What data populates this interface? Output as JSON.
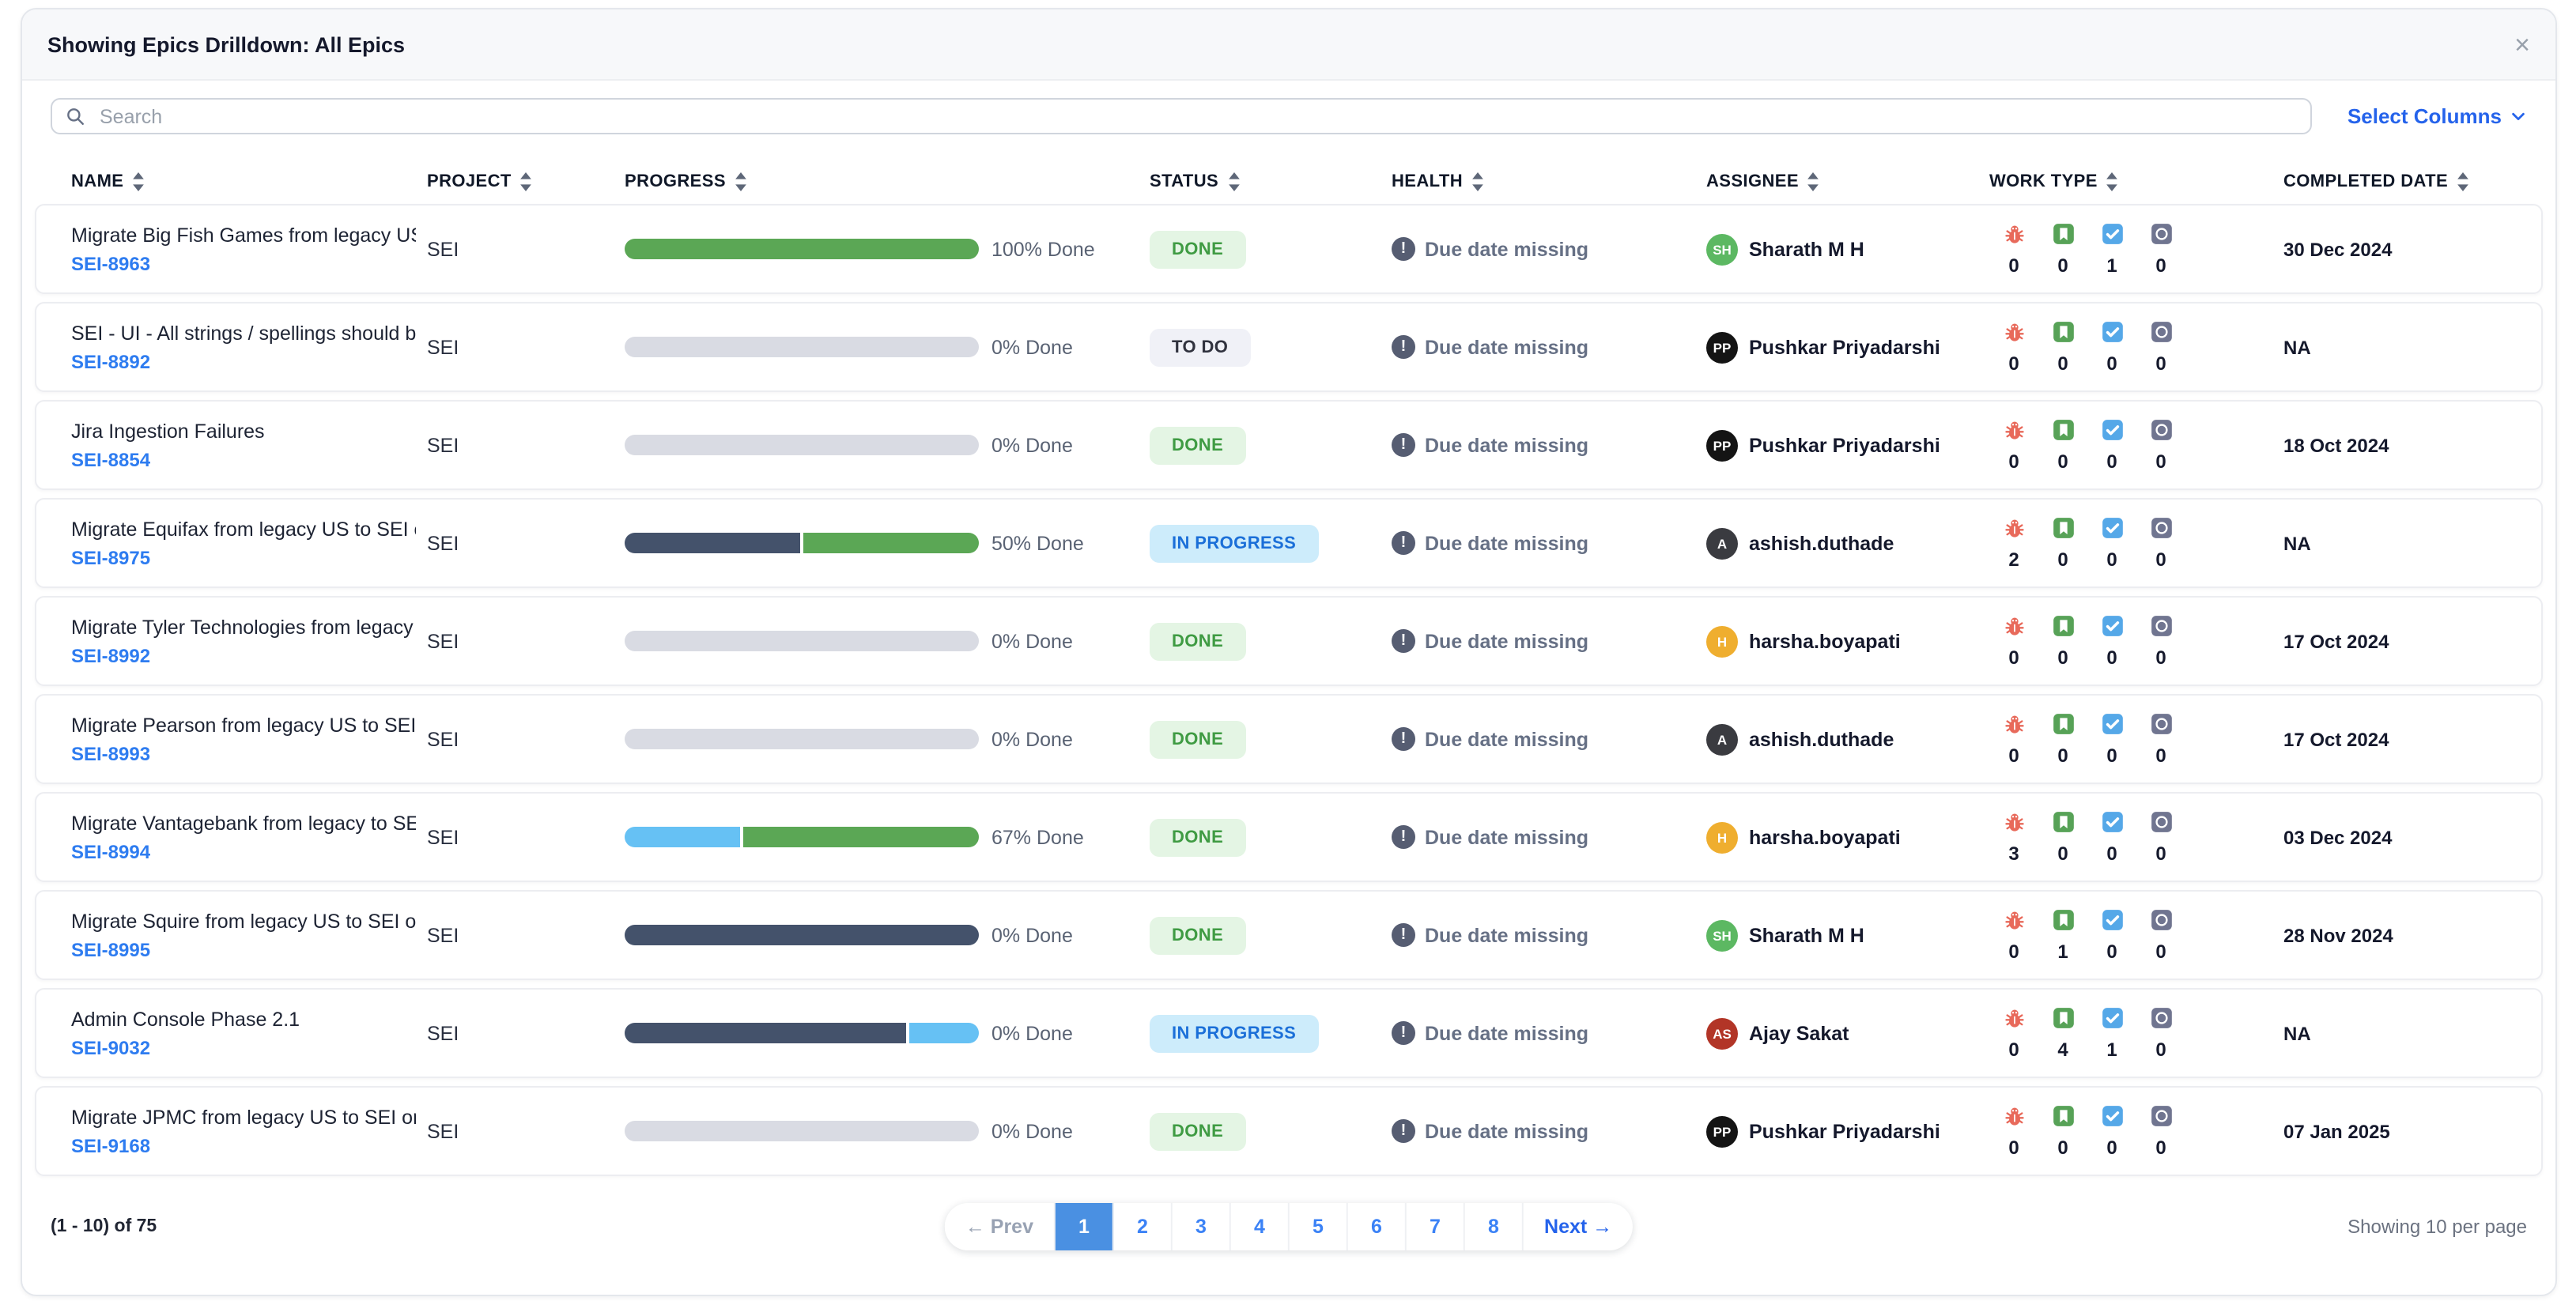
{
  "header": {
    "title": "Showing Epics Drilldown: All Epics"
  },
  "icons": {
    "close_glyph": "×",
    "warning_glyph": "!"
  },
  "toolbar": {
    "search_placeholder": "Search",
    "select_columns_label": "Select Columns"
  },
  "table": {
    "columns": [
      {
        "key": "name",
        "label": "NAME"
      },
      {
        "key": "project",
        "label": "PROJECT"
      },
      {
        "key": "progress",
        "label": "PROGRESS"
      },
      {
        "key": "status",
        "label": "STATUS"
      },
      {
        "key": "health",
        "label": "HEALTH"
      },
      {
        "key": "assignee",
        "label": "ASSIGNEE"
      },
      {
        "key": "worktype",
        "label": "WORK TYPE"
      },
      {
        "key": "date",
        "label": "COMPLETED DATE"
      }
    ],
    "work_types": [
      {
        "key": "bug"
      },
      {
        "key": "story"
      },
      {
        "key": "task"
      },
      {
        "key": "other"
      }
    ],
    "rows": [
      {
        "name": "Migrate Big Fish Games from legacy US to SEI ...",
        "key": "SEI-8963",
        "project": "SEI",
        "progress": {
          "label": "100% Done",
          "segments": [
            {
              "color": "green",
              "pct": 100
            }
          ]
        },
        "status": {
          "label": "DONE",
          "variant": "done"
        },
        "health": {
          "label": "Due date missing"
        },
        "assignee": {
          "initials": "SH",
          "name": "Sharath M H",
          "color": "#5cb862"
        },
        "work_type_counts": {
          "bug": "0",
          "story": "0",
          "task": "1",
          "other": "0"
        },
        "completed_date": "30 Dec 2024"
      },
      {
        "name": "SEI - UI - All strings / spellings should be in A...",
        "key": "SEI-8892",
        "project": "SEI",
        "progress": {
          "label": "0% Done",
          "segments": [
            {
              "color": "gray",
              "pct": 100
            }
          ]
        },
        "status": {
          "label": "TO DO",
          "variant": "todo"
        },
        "health": {
          "label": "Due date missing"
        },
        "assignee": {
          "initials": "PP",
          "name": "Pushkar Priyadarshi",
          "color": "#141414"
        },
        "work_type_counts": {
          "bug": "0",
          "story": "0",
          "task": "0",
          "other": "0"
        },
        "completed_date": "NA"
      },
      {
        "name": "Jira Ingestion Failures",
        "key": "SEI-8854",
        "project": "SEI",
        "progress": {
          "label": "0% Done",
          "segments": [
            {
              "color": "gray",
              "pct": 100
            }
          ]
        },
        "status": {
          "label": "DONE",
          "variant": "done"
        },
        "health": {
          "label": "Due date missing"
        },
        "assignee": {
          "initials": "PP",
          "name": "Pushkar Priyadarshi",
          "color": "#141414"
        },
        "work_type_counts": {
          "bug": "0",
          "story": "0",
          "task": "0",
          "other": "0"
        },
        "completed_date": "18 Oct 2024"
      },
      {
        "name": "Migrate Equifax from legacy US to SEI on Harn...",
        "key": "SEI-8975",
        "project": "SEI",
        "progress": {
          "label": "50% Done",
          "segments": [
            {
              "color": "slate",
              "pct": 50
            },
            {
              "color": "green",
              "pct": 50
            }
          ]
        },
        "status": {
          "label": "IN PROGRESS",
          "variant": "in_progress"
        },
        "health": {
          "label": "Due date missing"
        },
        "assignee": {
          "initials": "A",
          "name": "ashish.duthade",
          "color": "#3a3b40"
        },
        "work_type_counts": {
          "bug": "2",
          "story": "0",
          "task": "0",
          "other": "0"
        },
        "completed_date": "NA"
      },
      {
        "name": "Migrate Tyler Technologies from legacy US to ...",
        "key": "SEI-8992",
        "project": "SEI",
        "progress": {
          "label": "0% Done",
          "segments": [
            {
              "color": "gray",
              "pct": 100
            }
          ]
        },
        "status": {
          "label": "DONE",
          "variant": "done"
        },
        "health": {
          "label": "Due date missing"
        },
        "assignee": {
          "initials": "H",
          "name": "harsha.boyapati",
          "color": "#efae2f"
        },
        "work_type_counts": {
          "bug": "0",
          "story": "0",
          "task": "0",
          "other": "0"
        },
        "completed_date": "17 Oct 2024"
      },
      {
        "name": "Migrate Pearson from legacy US to SEI on Har...",
        "key": "SEI-8993",
        "project": "SEI",
        "progress": {
          "label": "0% Done",
          "segments": [
            {
              "color": "gray",
              "pct": 100
            }
          ]
        },
        "status": {
          "label": "DONE",
          "variant": "done"
        },
        "health": {
          "label": "Due date missing"
        },
        "assignee": {
          "initials": "A",
          "name": "ashish.duthade",
          "color": "#3a3b40"
        },
        "work_type_counts": {
          "bug": "0",
          "story": "0",
          "task": "0",
          "other": "0"
        },
        "completed_date": "17 Oct 2024"
      },
      {
        "name": "Migrate Vantagebank from legacy to SEI on Ha...",
        "key": "SEI-8994",
        "project": "SEI",
        "progress": {
          "label": "67% Done",
          "segments": [
            {
              "color": "lightblue",
              "pct": 33
            },
            {
              "color": "green",
              "pct": 67
            }
          ]
        },
        "status": {
          "label": "DONE",
          "variant": "done"
        },
        "health": {
          "label": "Due date missing"
        },
        "assignee": {
          "initials": "H",
          "name": "harsha.boyapati",
          "color": "#efae2f"
        },
        "work_type_counts": {
          "bug": "3",
          "story": "0",
          "task": "0",
          "other": "0"
        },
        "completed_date": "03 Dec 2024"
      },
      {
        "name": "Migrate Squire from legacy US to SEI on Harne...",
        "key": "SEI-8995",
        "project": "SEI",
        "progress": {
          "label": "0% Done",
          "segments": [
            {
              "color": "slate",
              "pct": 100
            }
          ]
        },
        "status": {
          "label": "DONE",
          "variant": "done"
        },
        "health": {
          "label": "Due date missing"
        },
        "assignee": {
          "initials": "SH",
          "name": "Sharath M H",
          "color": "#5cb862"
        },
        "work_type_counts": {
          "bug": "0",
          "story": "1",
          "task": "0",
          "other": "0"
        },
        "completed_date": "28 Nov 2024"
      },
      {
        "name": "Admin Console Phase 2.1",
        "key": "SEI-9032",
        "project": "SEI",
        "progress": {
          "label": "0% Done",
          "segments": [
            {
              "color": "slate",
              "pct": 80
            },
            {
              "color": "lightblue",
              "pct": 20
            }
          ]
        },
        "status": {
          "label": "IN PROGRESS",
          "variant": "in_progress"
        },
        "health": {
          "label": "Due date missing"
        },
        "assignee": {
          "initials": "AS",
          "name": "Ajay Sakat",
          "color": "#b23527"
        },
        "work_type_counts": {
          "bug": "0",
          "story": "4",
          "task": "1",
          "other": "0"
        },
        "completed_date": "NA"
      },
      {
        "name": "Migrate JPMC from legacy US to SEI on Harne...",
        "key": "SEI-9168",
        "project": "SEI",
        "progress": {
          "label": "0% Done",
          "segments": [
            {
              "color": "gray",
              "pct": 100
            }
          ]
        },
        "status": {
          "label": "DONE",
          "variant": "done"
        },
        "health": {
          "label": "Due date missing"
        },
        "assignee": {
          "initials": "PP",
          "name": "Pushkar Priyadarshi",
          "color": "#141414"
        },
        "work_type_counts": {
          "bug": "0",
          "story": "0",
          "task": "0",
          "other": "0"
        },
        "completed_date": "07 Jan 2025"
      }
    ]
  },
  "footer": {
    "range_label": "(1 - 10) of 75",
    "pagination": {
      "prev_label": "← Prev",
      "next_label": "Next →",
      "pages": [
        "1",
        "2",
        "3",
        "4",
        "5",
        "6",
        "7",
        "8"
      ],
      "active_page": "1"
    },
    "page_size_label": "Showing 10 per page"
  },
  "colors": {
    "accent_blue": "#2563eb",
    "link_blue": "#2e7cf0",
    "pagination_active_bg": "#4a90e2",
    "progress": {
      "green": "#5ba755",
      "slate": "#44526b",
      "lightblue": "#66c1f4",
      "gray": "#d9dbe3"
    },
    "status": {
      "done": {
        "bg": "#e4f5e4",
        "text": "#3f9b43"
      },
      "todo": {
        "bg": "#f0f1f7",
        "text": "#30323e"
      },
      "in_progress": {
        "bg": "#cdecfb",
        "text": "#1b6fd8"
      }
    },
    "work_type": {
      "bug": "#e8695a",
      "story": "#57a257",
      "task": "#55a8e8",
      "other": "#707590"
    },
    "health_icon": "#565d72"
  }
}
